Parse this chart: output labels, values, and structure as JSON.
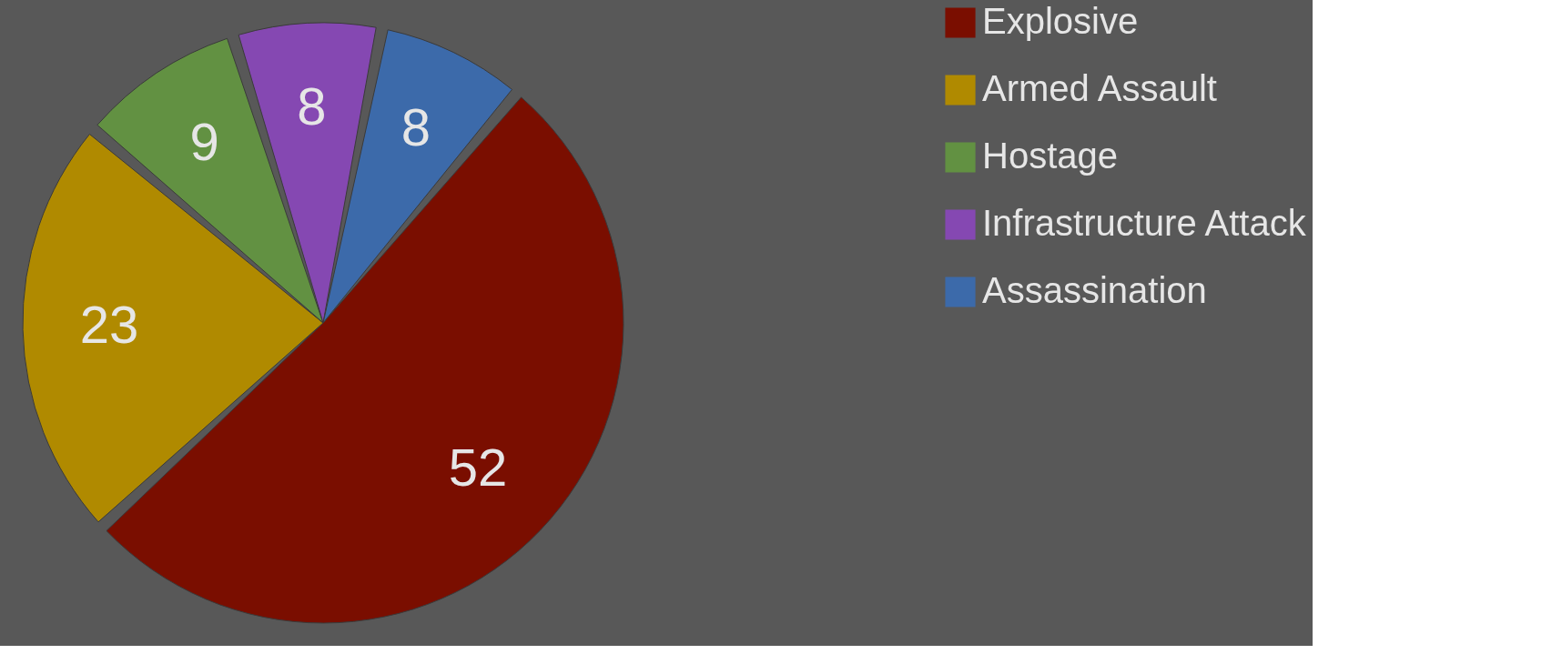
{
  "chart_data": {
    "type": "pie",
    "categories": [
      "Explosive",
      "Armed Assault",
      "Hostage",
      "Infrastructure Attack",
      "Assassination"
    ],
    "values": [
      52,
      23,
      9,
      8,
      8
    ],
    "colors": [
      "#7a0e00",
      "#b08a00",
      "#629142",
      "#8548b2",
      "#3c6aaa"
    ],
    "data_labels": true,
    "legend": "right"
  }
}
